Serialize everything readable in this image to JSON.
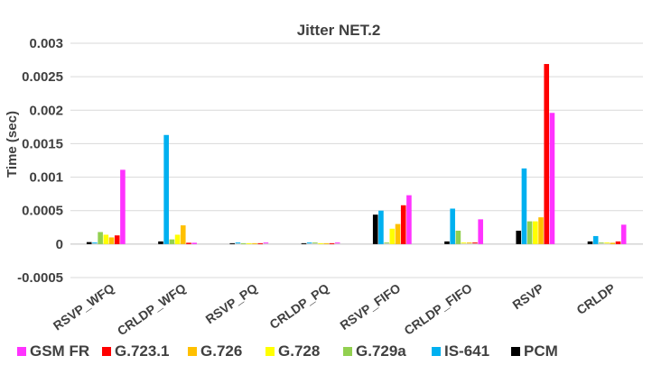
{
  "chart_data": {
    "type": "bar",
    "title": "Jitter NET.2",
    "xlabel": "",
    "ylabel": "Time (sec)",
    "ylim": [
      -0.0005,
      0.003
    ],
    "yticks": [
      "-0.0005",
      "0",
      "0.0005",
      "0.001",
      "0.0015",
      "0.002",
      "0.0025",
      "0.003"
    ],
    "ytick_values": [
      -0.0005,
      0,
      0.0005,
      0.001,
      0.0015,
      0.002,
      0.0025,
      0.003
    ],
    "grid": true,
    "legend": "bottom",
    "categories": [
      "RSVP_WFQ",
      "CRLDP_WFQ",
      "RSVP_PQ",
      "CRLDP_PQ",
      "RSVP_FIFO",
      "CRLDP_FIFO",
      "RSVP",
      "CRLDP"
    ],
    "series": [
      {
        "name": "PCM",
        "color": "#000000",
        "values": [
          3e-05,
          4e-05,
          0,
          0,
          0.00044,
          4e-05,
          0.0002,
          4e-05
        ]
      },
      {
        "name": "IS-641",
        "color": "#00b0f0",
        "values": [
          1e-05,
          0.00163,
          1e-05,
          1e-05,
          0.0005,
          0.00053,
          0.00113,
          0.00012
        ]
      },
      {
        "name": "G.729a",
        "color": "#92d050",
        "values": [
          0.00018,
          7e-05,
          0,
          1e-05,
          1e-05,
          0.0002,
          0.00034,
          1e-05
        ]
      },
      {
        "name": "G.728",
        "color": "#ffff00",
        "values": [
          0.00014,
          0.00014,
          0,
          0,
          0.00023,
          1e-05,
          0.00034,
          1e-05
        ]
      },
      {
        "name": "G.726",
        "color": "#ffc000",
        "values": [
          0.0001,
          0.00028,
          0,
          0,
          0.0003,
          1e-05,
          0.0004,
          2e-05
        ]
      },
      {
        "name": "G.723.1",
        "color": "#ff0000",
        "values": [
          0.00013,
          2e-05,
          0,
          0,
          0.00058,
          1e-05,
          0.00269,
          4e-05
        ]
      },
      {
        "name": "GSM FR",
        "color": "#ff33ff",
        "values": [
          0.00111,
          2e-05,
          1e-05,
          1e-05,
          0.00073,
          0.00037,
          0.00196,
          0.00029
        ]
      }
    ],
    "legend_order": [
      "GSM FR",
      "G.723.1",
      "G.726",
      "G.728",
      "G.729a",
      "IS-641",
      "PCM"
    ]
  }
}
